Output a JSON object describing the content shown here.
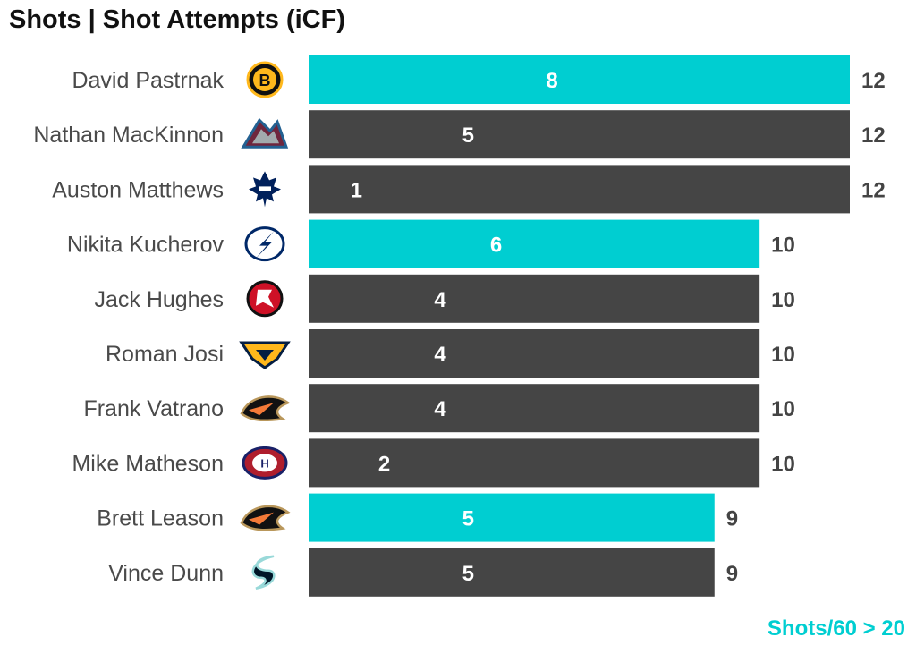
{
  "chart_data": {
    "type": "bar",
    "orientation": "horizontal",
    "title": "Shots | Shot Attempts (iCF)",
    "footnote": "Shots/60 > 20",
    "highlight_color": "#00CED1",
    "base_color": "#454545",
    "categories": [
      "David Pastrnak",
      "Nathan MacKinnon",
      "Auston Matthews",
      "Nikita Kucherov",
      "Jack Hughes",
      "Roman Josi",
      "Frank Vatrano",
      "Mike Matheson",
      "Brett Leason",
      "Vince Dunn"
    ],
    "teams": [
      "boston-bruins-icon",
      "colorado-avalanche-icon",
      "toronto-maple-leafs-icon",
      "tampa-bay-lightning-icon",
      "new-jersey-devils-icon",
      "nashville-predators-icon",
      "anaheim-ducks-icon",
      "montreal-canadiens-icon",
      "anaheim-ducks-icon",
      "seattle-kraken-icon"
    ],
    "series": [
      {
        "name": "Shots",
        "values": [
          8,
          5,
          1,
          6,
          4,
          4,
          4,
          2,
          5,
          5
        ]
      },
      {
        "name": "Shot Attempts (iCF)",
        "values": [
          12,
          12,
          12,
          10,
          10,
          10,
          10,
          10,
          9,
          9
        ]
      }
    ],
    "highlighted": [
      true,
      false,
      false,
      true,
      false,
      false,
      false,
      false,
      true,
      false
    ],
    "xlim": [
      0,
      12
    ]
  }
}
